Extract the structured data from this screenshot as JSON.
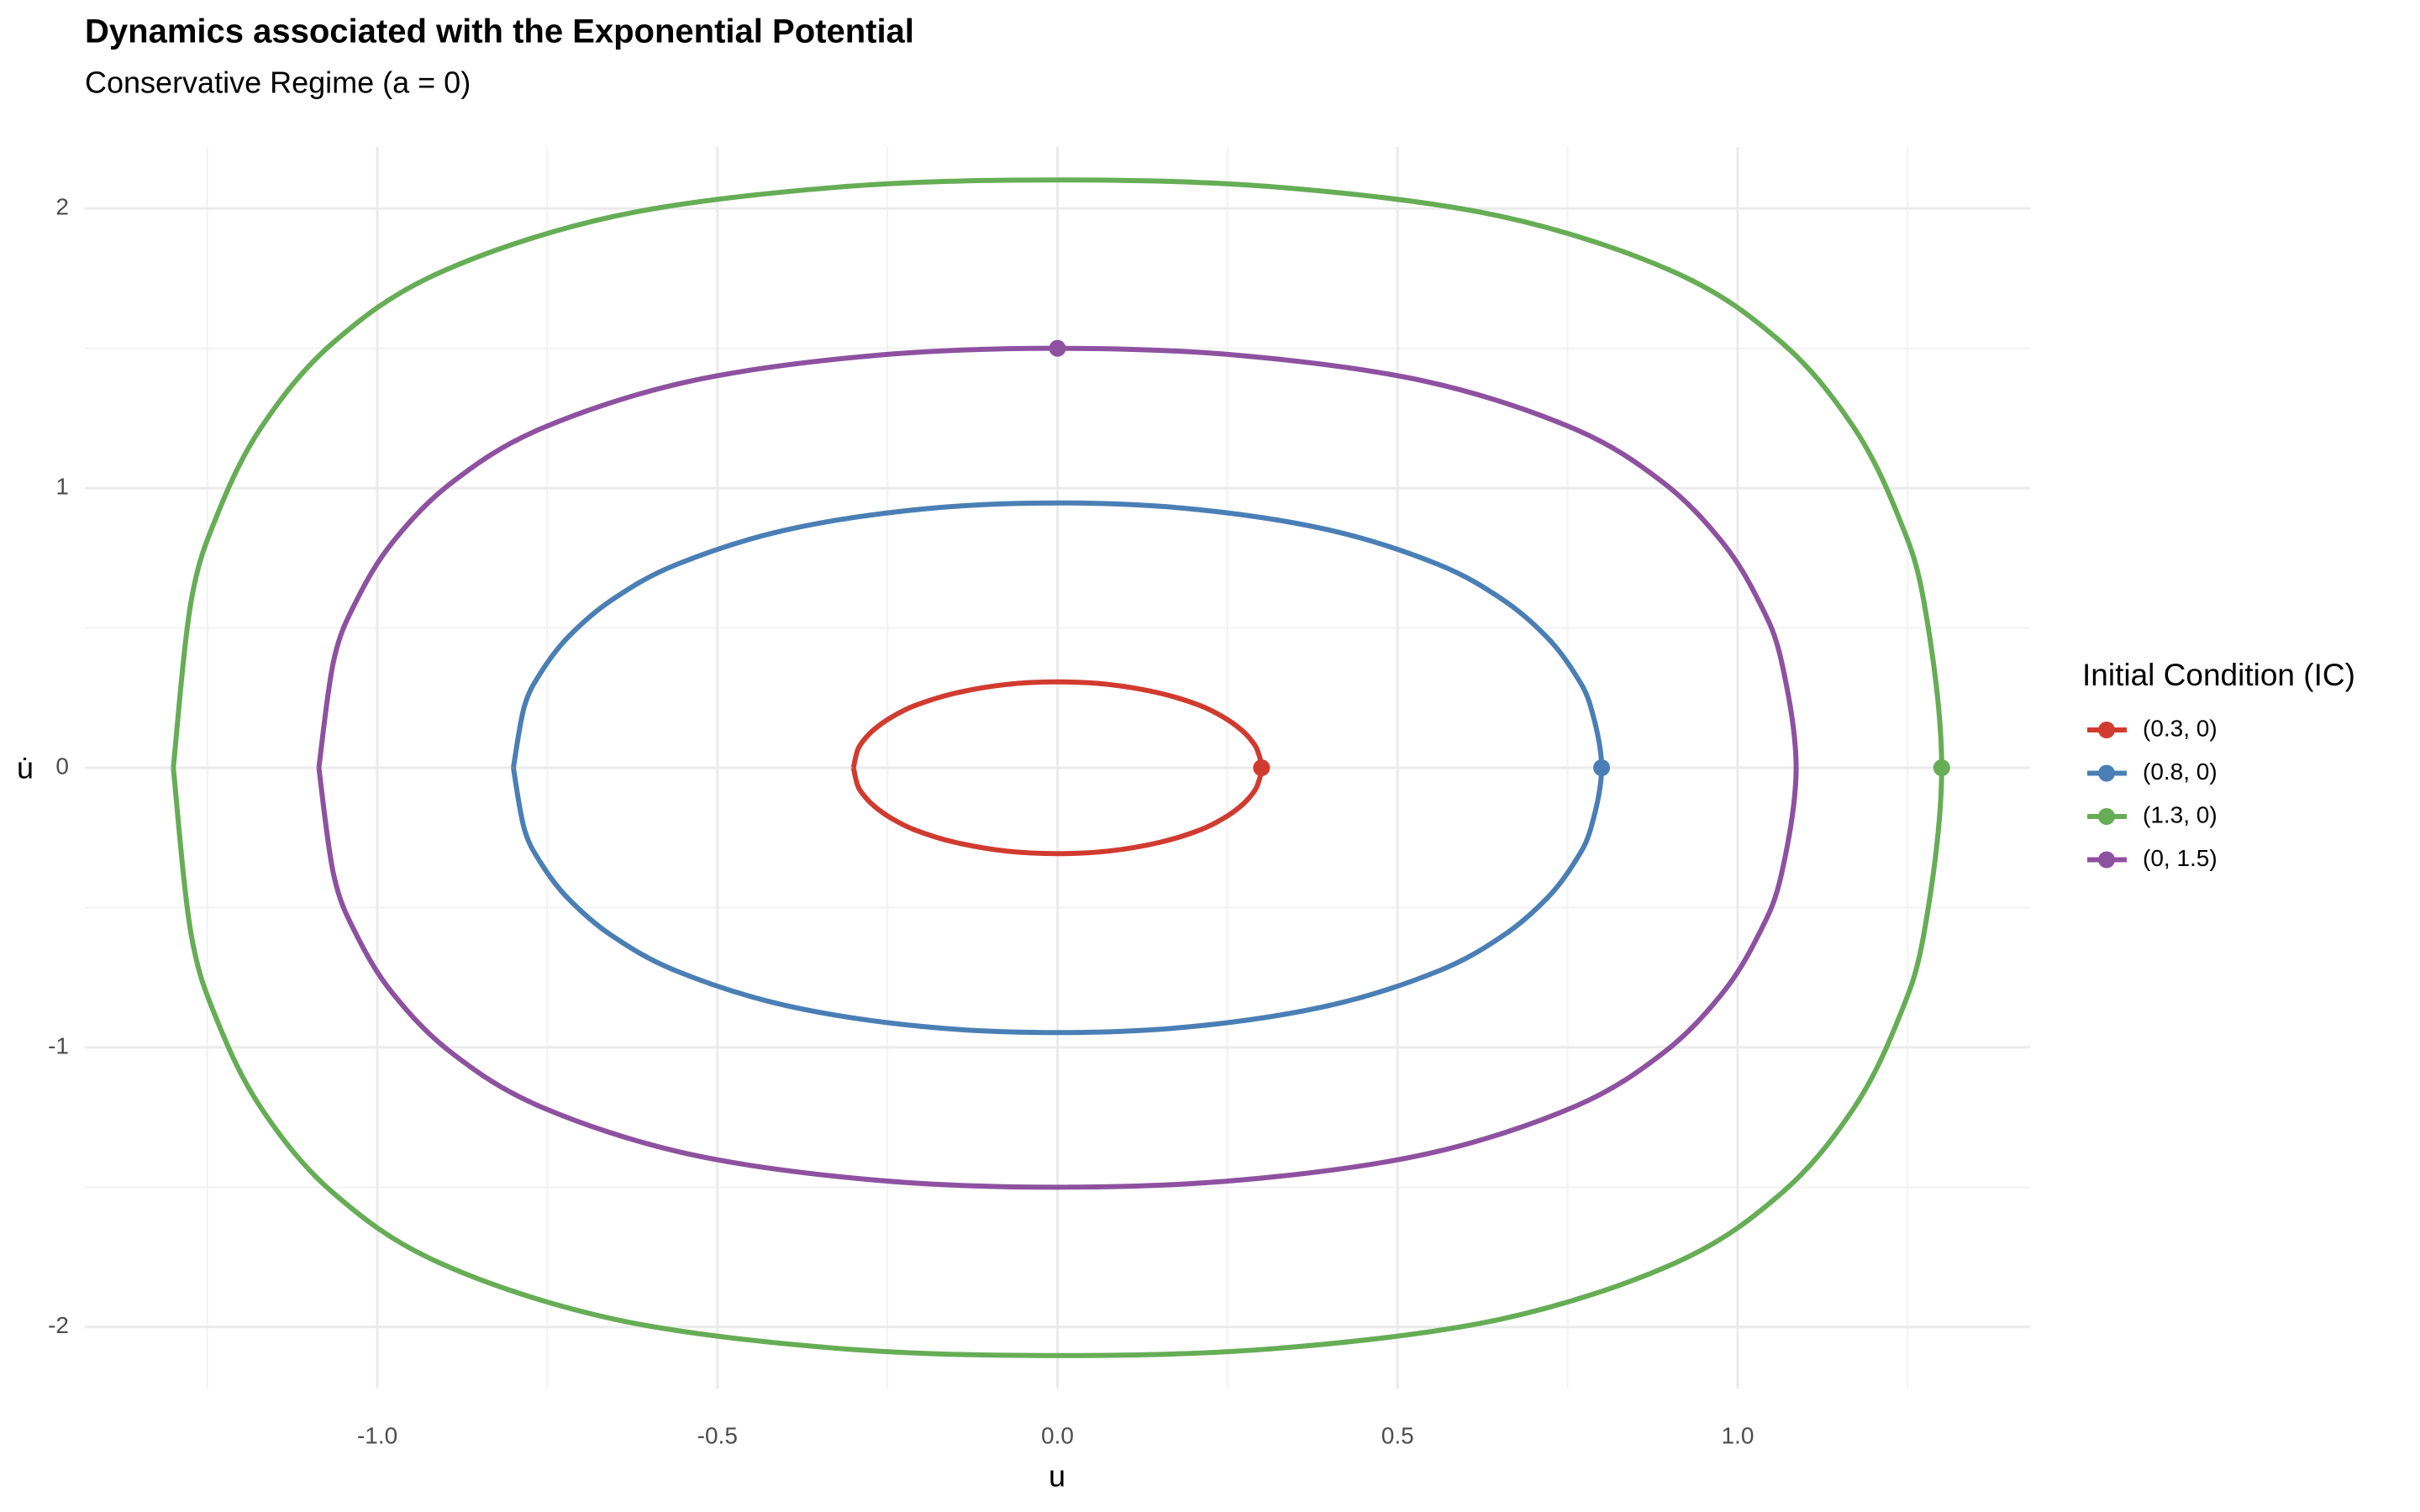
{
  "chart_data": {
    "type": "line",
    "title": "Dynamics associated with the Exponential Potential",
    "subtitle": "Conservative Regime (a = 0)",
    "x_label": "u",
    "y_label": "u̇",
    "legend_title": "Initial Condition (IC)",
    "legend_position": "right",
    "grid": true,
    "xlim": [
      -1.43,
      1.43
    ],
    "ylim": [
      -2.22,
      2.22
    ],
    "xticks": [
      {
        "value": -1,
        "label": "-1.0"
      },
      {
        "value": -0.5,
        "label": "-0.5"
      },
      {
        "value": 0,
        "label": "0.0"
      },
      {
        "value": 0.5,
        "label": "0.5"
      },
      {
        "value": 1,
        "label": "1.0"
      }
    ],
    "yticks": [
      -2,
      -1,
      0,
      1,
      2
    ],
    "xminor": [
      -1.25,
      -0.75,
      -0.25,
      0.25,
      0.75,
      1.25
    ],
    "yminor": [
      -1.5,
      -0.5,
      0.5,
      1.5
    ],
    "series": [
      {
        "name": "(0.3, 0)",
        "color": "#d13b2f",
        "x0": 0.3,
        "y0": 0,
        "x": [
          -0.3,
          -0.294,
          -0.285,
          -0.27,
          -0.246,
          -0.21,
          -0.15,
          -0.075,
          0,
          0.075,
          0.15,
          0.21,
          0.246,
          0.27,
          0.285,
          0.294,
          0.3,
          0.294,
          0.285,
          0.27,
          0.246,
          0.21,
          0.15,
          0.075,
          0,
          -0.075,
          -0.15,
          -0.21,
          -0.246,
          -0.27,
          -0.285,
          -0.294,
          -0.3
        ],
        "values": [
          0,
          0.062,
          0.098,
          0.136,
          0.178,
          0.222,
          0.267,
          0.298,
          0.307,
          0.298,
          0.267,
          0.222,
          0.178,
          0.136,
          0.098,
          0.062,
          0,
          -0.062,
          -0.098,
          -0.136,
          -0.178,
          -0.222,
          -0.267,
          -0.298,
          -0.307,
          -0.298,
          -0.267,
          -0.222,
          -0.178,
          -0.136,
          -0.098,
          -0.062,
          0
        ]
      },
      {
        "name": "(0.8, 0)",
        "color": "#4a7fb5",
        "x0": 0.8,
        "y0": 0,
        "x": [
          -0.8,
          -0.784,
          -0.76,
          -0.72,
          -0.656,
          -0.56,
          -0.4,
          -0.2,
          0,
          0.2,
          0.4,
          0.56,
          0.656,
          0.72,
          0.76,
          0.784,
          0.8,
          0.784,
          0.76,
          0.72,
          0.656,
          0.56,
          0.4,
          0.2,
          0,
          -0.2,
          -0.4,
          -0.56,
          -0.656,
          -0.72,
          -0.76,
          -0.784,
          -0.8
        ],
        "values": [
          0,
          0.218,
          0.339,
          0.466,
          0.599,
          0.727,
          0.85,
          0.925,
          0.947,
          0.925,
          0.85,
          0.727,
          0.599,
          0.466,
          0.339,
          0.218,
          0,
          -0.218,
          -0.339,
          -0.466,
          -0.599,
          -0.727,
          -0.85,
          -0.925,
          -0.947,
          -0.925,
          -0.85,
          -0.727,
          -0.599,
          -0.466,
          -0.339,
          -0.218,
          0
        ]
      },
      {
        "name": "(1.3, 0)",
        "color": "#66ad55",
        "x0": 1.3,
        "y0": 0,
        "x": [
          -1.3,
          -1.274,
          -1.235,
          -1.17,
          -1.066,
          -0.91,
          -0.65,
          -0.325,
          0,
          0.325,
          0.65,
          0.91,
          1.066,
          1.17,
          1.235,
          1.274,
          1.3,
          1.274,
          1.235,
          1.17,
          1.066,
          0.91,
          0.65,
          0.325,
          0,
          -0.325,
          -0.65,
          -0.91,
          -1.066,
          -1.17,
          -1.235,
          -1.274,
          -1.3
        ],
        "values": [
          0,
          0.592,
          0.907,
          1.22,
          1.518,
          1.769,
          1.973,
          2.076,
          2.102,
          2.076,
          1.973,
          1.769,
          1.518,
          1.22,
          0.907,
          0.592,
          0,
          -0.592,
          -0.907,
          -1.22,
          -1.518,
          -1.769,
          -1.973,
          -2.076,
          -2.102,
          -2.076,
          -1.973,
          -1.769,
          -1.518,
          -1.22,
          -0.907,
          -0.592,
          0
        ]
      },
      {
        "name": "(0, 1.5)",
        "color": "#8e51a0",
        "x0": 0,
        "y0": 1.5,
        "x": [
          -1.086,
          -1.064,
          -1.031,
          -0.977,
          -0.89,
          -0.76,
          -0.543,
          -0.271,
          0,
          0.271,
          0.543,
          0.76,
          0.89,
          0.977,
          1.031,
          1.064,
          1.086,
          1.064,
          1.031,
          0.977,
          0.89,
          0.76,
          0.543,
          0.271,
          0,
          -0.271,
          -0.543,
          -0.76,
          -0.89,
          -0.977,
          -1.031,
          -1.064,
          -1.086
        ],
        "values": [
          0,
          0.385,
          0.596,
          0.808,
          1.021,
          1.212,
          1.381,
          1.474,
          1.5,
          1.474,
          1.381,
          1.212,
          1.021,
          0.808,
          0.596,
          0.385,
          0,
          -0.385,
          -0.596,
          -0.808,
          -1.021,
          -1.212,
          -1.381,
          -1.474,
          -1.5,
          -1.474,
          -1.381,
          -1.212,
          -1.021,
          -0.808,
          -0.596,
          -0.385,
          0
        ]
      }
    ]
  }
}
